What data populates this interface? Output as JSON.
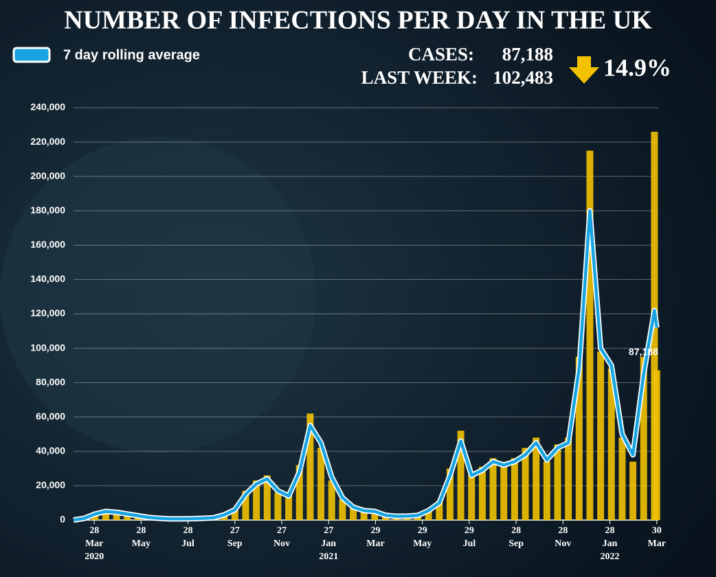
{
  "chart_data": {
    "type": "line",
    "title": "NUMBER OF INFECTIONS PER DAY IN THE UK",
    "stats": [
      {
        "label": "CASES:",
        "value": "87,188"
      },
      {
        "label": "LAST WEEK:",
        "value": "102,483"
      }
    ],
    "change": "14.9%",
    "annotation": "87,188",
    "x": [
      "2020-03-01",
      "2020-03-15",
      "2020-03-29",
      "2020-04-12",
      "2020-04-26",
      "2020-05-10",
      "2020-05-24",
      "2020-06-07",
      "2020-06-21",
      "2020-07-05",
      "2020-07-19",
      "2020-08-02",
      "2020-08-16",
      "2020-08-30",
      "2020-09-13",
      "2020-09-27",
      "2020-10-11",
      "2020-10-25",
      "2020-11-08",
      "2020-11-22",
      "2020-12-06",
      "2020-12-20",
      "2021-01-03",
      "2021-01-17",
      "2021-01-31",
      "2021-02-14",
      "2021-02-28",
      "2021-03-14",
      "2021-03-28",
      "2021-04-11",
      "2021-04-25",
      "2021-05-09",
      "2021-05-23",
      "2021-06-06",
      "2021-06-20",
      "2021-07-04",
      "2021-07-18",
      "2021-08-01",
      "2021-08-15",
      "2021-08-29",
      "2021-09-12",
      "2021-09-26",
      "2021-10-10",
      "2021-10-24",
      "2021-11-07",
      "2021-11-21",
      "2021-12-05",
      "2021-12-19",
      "2022-01-02",
      "2022-01-16",
      "2022-01-30",
      "2022-02-13",
      "2022-02-27",
      "2022-03-13",
      "2022-03-27",
      "2022-03-30"
    ],
    "series": [
      {
        "type": "bar",
        "color": "#f2c200",
        "values": [
          0,
          1200,
          4000,
          5500,
          4800,
          3800,
          2600,
          1600,
          1000,
          700,
          800,
          900,
          1100,
          1500,
          3500,
          7000,
          17000,
          23000,
          26000,
          16000,
          15000,
          32000,
          62000,
          42000,
          23000,
          12000,
          7000,
          5800,
          4800,
          2600,
          2000,
          2200,
          2800,
          6000,
          11000,
          30000,
          52000,
          27000,
          31000,
          36000,
          33000,
          36000,
          42000,
          48000,
          34000,
          44000,
          48000,
          95000,
          215000,
          98000,
          88000,
          48000,
          34000,
          95000,
          226000,
          87188
        ]
      },
      {
        "name": "7 day rolling average",
        "color": "#18a4e0",
        "values": [
          0,
          1000,
          3500,
          5000,
          4500,
          3500,
          2500,
          1500,
          1000,
          700,
          700,
          800,
          1000,
          1300,
          3000,
          6000,
          15000,
          21000,
          24000,
          17000,
          14000,
          28000,
          55000,
          45000,
          25000,
          13000,
          7500,
          5500,
          5000,
          2800,
          2200,
          2300,
          2700,
          5500,
          10000,
          26000,
          46000,
          26000,
          29000,
          34000,
          32000,
          34000,
          38000,
          45000,
          35000,
          42000,
          45000,
          88000,
          180000,
          100000,
          90000,
          50000,
          38000,
          85000,
          122000,
          112000
        ]
      }
    ],
    "xlim": [
      "2020-03-01",
      "2022-04-01"
    ],
    "xticks": [
      {
        "value": "2020-03-28",
        "label": "28 Mar 2020"
      },
      {
        "value": "2020-05-28",
        "label": "28 May"
      },
      {
        "value": "2020-07-28",
        "label": "28 Jul"
      },
      {
        "value": "2020-09-27",
        "label": "27 Sep"
      },
      {
        "value": "2020-11-27",
        "label": "27 Nov"
      },
      {
        "value": "2021-01-27",
        "label": "27 Jan 2021"
      },
      {
        "value": "2021-03-29",
        "label": "29 Mar"
      },
      {
        "value": "2021-05-29",
        "label": "29 May"
      },
      {
        "value": "2021-07-29",
        "label": "29 Jul"
      },
      {
        "value": "2021-09-28",
        "label": "28 Sep"
      },
      {
        "value": "2021-11-28",
        "label": "28 Nov"
      },
      {
        "value": "2022-01-28",
        "label": "28 Jan 2022"
      },
      {
        "value": "2022-03-30",
        "label": "30 Mar"
      }
    ],
    "ylim": [
      0,
      240000
    ],
    "yticks": [
      0,
      {
        "value": 20000,
        "label": "20,000"
      },
      {
        "value": 40000,
        "label": "40,000"
      },
      {
        "value": 60000,
        "label": "60,000"
      },
      {
        "value": 80000,
        "label": "80,000"
      },
      {
        "value": 100000,
        "label": "100,000"
      },
      {
        "value": 120000,
        "label": "120,000"
      },
      {
        "value": 140000,
        "label": "140,000"
      },
      {
        "value": 160000,
        "label": "160,000"
      },
      {
        "value": 180000,
        "label": "180,000"
      },
      {
        "value": 200000,
        "label": "200,000"
      },
      {
        "value": 220000,
        "label": "220,000"
      },
      {
        "value": 240000,
        "label": "240,000"
      }
    ],
    "grid": true
  }
}
